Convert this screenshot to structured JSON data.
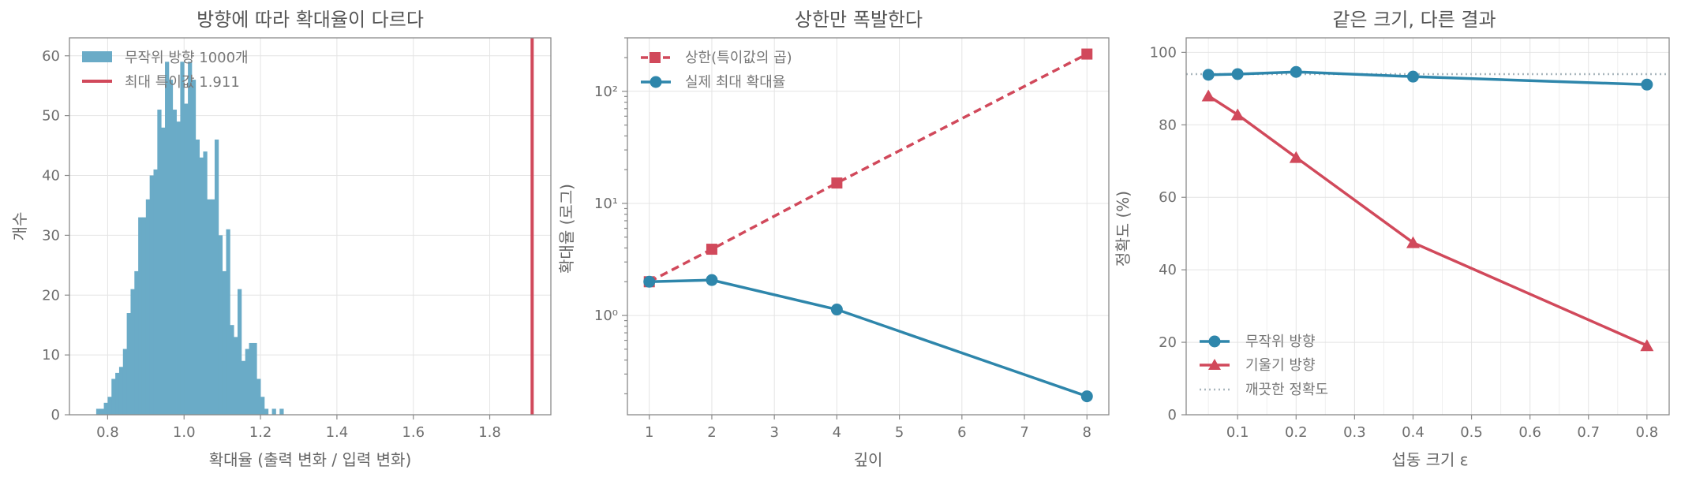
{
  "colors": {
    "blue": "#2e86ab",
    "red": "#d1495b",
    "hist": "#6aabc7",
    "dotted": "#a9b6bd"
  },
  "chart_data": [
    {
      "type": "bar",
      "subtype": "histogram",
      "title": "방향에 따라 확대율이 다르다",
      "xlabel": "확대율 (출력 변화 / 입력 변화)",
      "ylabel": "개수",
      "xlim": [
        0.7,
        1.96
      ],
      "ylim": [
        0,
        63
      ],
      "xticks": [
        "0.8",
        "1.0",
        "1.2",
        "1.4",
        "1.6",
        "1.8"
      ],
      "yticks": [
        "0",
        "10",
        "20",
        "30",
        "40",
        "50",
        "60"
      ],
      "bin_start": 0.77,
      "bin_width": 0.01,
      "counts": [
        1,
        1,
        2,
        3,
        6,
        7,
        8,
        11,
        17,
        21,
        24,
        33,
        33,
        36,
        40,
        41,
        51,
        48,
        59,
        56,
        51,
        49,
        59,
        52,
        59,
        56,
        46,
        43,
        44,
        36,
        36,
        46,
        30,
        24,
        31,
        15,
        13,
        21,
        9,
        11,
        12,
        12,
        6,
        3,
        1,
        0,
        1,
        0,
        1
      ],
      "vline": 1.911,
      "grid": true,
      "legend_position": "top-left",
      "legend": [
        "무작위 방향 1000개",
        "최대 특이값 1.911"
      ]
    },
    {
      "type": "line",
      "title": "상한만 폭발한다",
      "xlabel": "깊이",
      "ylabel": "확대율 (로그)",
      "yscale": "log",
      "xlim": [
        0.65,
        8.35
      ],
      "ylim": [
        0.13,
        300
      ],
      "xticks": [
        "1",
        "2",
        "3",
        "4",
        "5",
        "6",
        "7",
        "8"
      ],
      "yticks": [
        "10⁰",
        "10¹",
        "10²"
      ],
      "x": [
        1,
        2,
        4,
        8
      ],
      "series": [
        {
          "name": "상한(특이값의 곱)",
          "values": [
            2.0,
            3.9,
            15.2,
            215
          ],
          "style": "dashed",
          "marker": "square"
        },
        {
          "name": "실제 최대 확대율",
          "values": [
            2.0,
            2.07,
            1.13,
            0.19
          ],
          "style": "solid",
          "marker": "circle"
        }
      ],
      "grid": true,
      "legend_position": "top-left"
    },
    {
      "type": "line",
      "title": "같은 크기, 다른 결과",
      "xlabel": "섭동 크기 ε",
      "ylabel": "정확도 (%)",
      "xlim": [
        0.012,
        0.838
      ],
      "ylim": [
        0,
        104
      ],
      "xticks": [
        "0.1",
        "0.2",
        "0.3",
        "0.4",
        "0.5",
        "0.6",
        "0.7",
        "0.8"
      ],
      "yticks": [
        "0",
        "20",
        "40",
        "60",
        "80",
        "100"
      ],
      "x": [
        0.05,
        0.1,
        0.2,
        0.4,
        0.8
      ],
      "series": [
        {
          "name": "무작위 방향",
          "values": [
            93.8,
            94.0,
            94.6,
            93.3,
            91.1
          ],
          "marker": "circle"
        },
        {
          "name": "기울기 방향",
          "values": [
            88.0,
            82.8,
            71.0,
            47.5,
            19.1
          ],
          "marker": "triangle"
        }
      ],
      "hline": {
        "name": "깨끗한 정확도",
        "value": 94.0
      },
      "grid": true,
      "legend_position": "bottom-left"
    }
  ]
}
